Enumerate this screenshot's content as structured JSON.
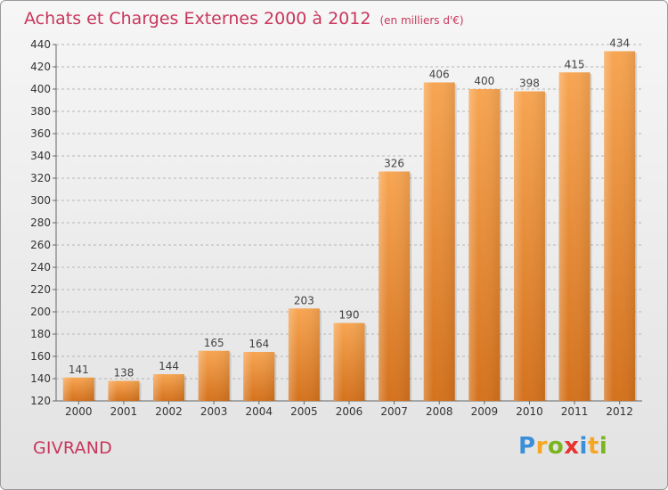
{
  "chart_data": {
    "type": "bar",
    "title": "Achats et Charges Externes 2000 à 2012",
    "unit_label": "(en milliers d'€)",
    "categories": [
      "2000",
      "2001",
      "2002",
      "2003",
      "2004",
      "2005",
      "2006",
      "2007",
      "2008",
      "2009",
      "2010",
      "2011",
      "2012"
    ],
    "values": [
      141,
      138,
      144,
      165,
      164,
      203,
      190,
      326,
      406,
      400,
      398,
      415,
      434
    ],
    "ylim": [
      120,
      440
    ],
    "yticks": [
      120,
      140,
      160,
      180,
      200,
      220,
      240,
      260,
      280,
      300,
      320,
      340,
      360,
      380,
      400,
      420,
      440
    ],
    "grid": true,
    "bar_color": "#f0973f",
    "label_color": "#444444"
  },
  "commune": "GIVRAND",
  "logo": {
    "letters": [
      "P",
      "r",
      "o",
      "x",
      "i",
      "t",
      "i"
    ],
    "colors": [
      "#3a8fd8",
      "#f5a623",
      "#7ab51d",
      "#e8322e",
      "#3a8fd8",
      "#f5a623",
      "#7ab51d"
    ]
  },
  "colors": {
    "accent": "#c8365d"
  }
}
